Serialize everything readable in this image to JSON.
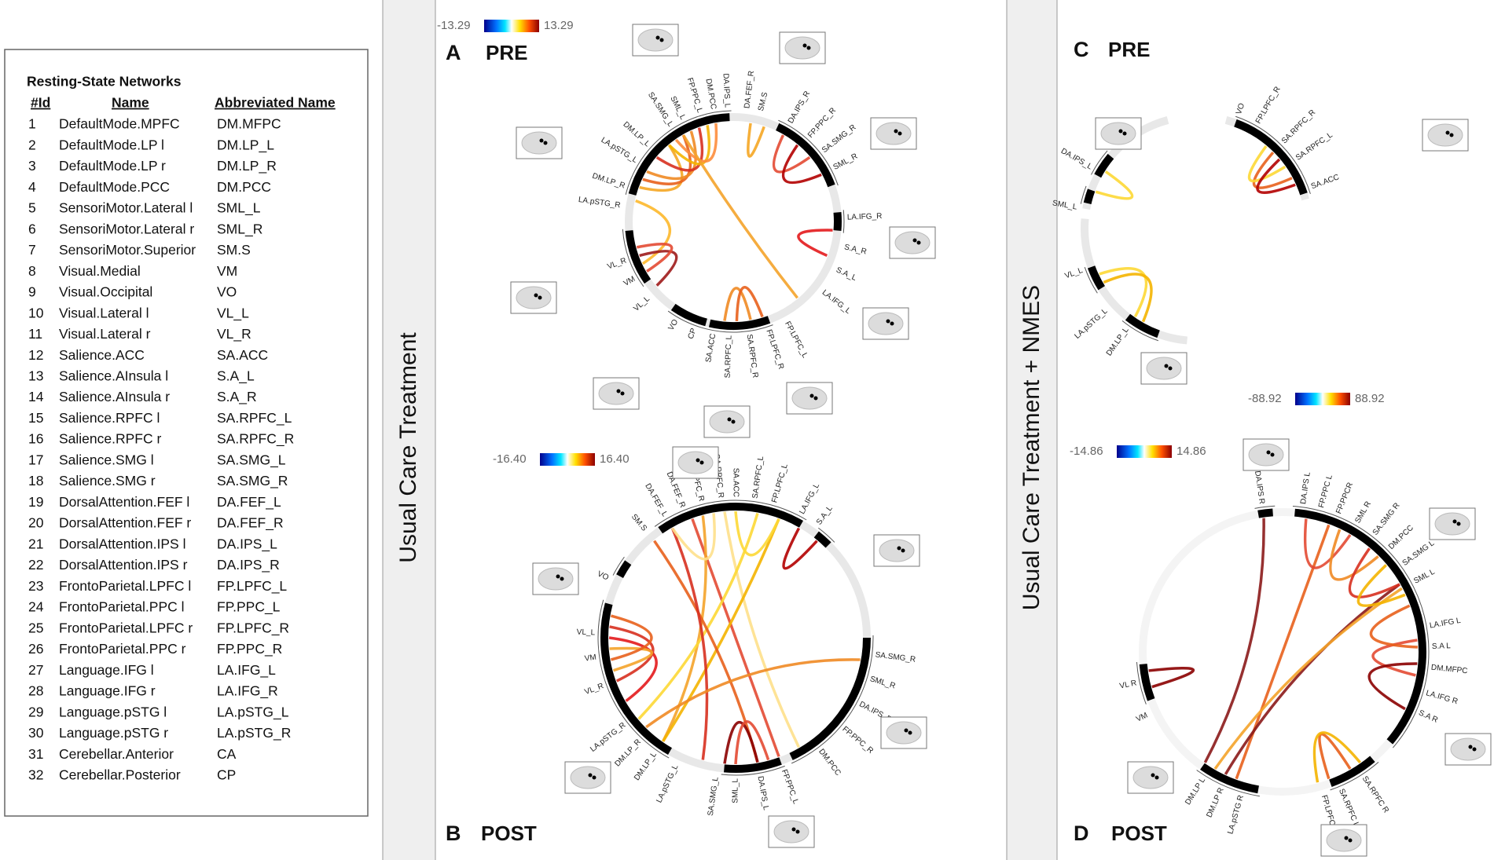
{
  "table": {
    "title": "Resting-State Networks",
    "headers": [
      "#Id",
      "Name",
      "Abbreviated Name"
    ],
    "rows": [
      [
        "1",
        "DefaultMode.MPFC",
        "DM.MFPC"
      ],
      [
        "2",
        "DefaultMode.LP l",
        "DM.LP_L"
      ],
      [
        "3",
        "DefaultMode.LP r",
        "DM.LP_R"
      ],
      [
        "4",
        "DefaultMode.PCC",
        "DM.PCC"
      ],
      [
        "5",
        "SensoriMotor.Lateral l",
        "SML_L"
      ],
      [
        "6",
        "SensoriMotor.Lateral r",
        "SML_R"
      ],
      [
        "7",
        "SensoriMotor.Superior",
        "SM.S"
      ],
      [
        "8",
        "Visual.Medial",
        "VM"
      ],
      [
        "9",
        "Visual.Occipital",
        "VO"
      ],
      [
        "10",
        "Visual.Lateral l",
        "VL_L"
      ],
      [
        "11",
        "Visual.Lateral r",
        "VL_R"
      ],
      [
        "12",
        "Salience.ACC",
        "SA.ACC"
      ],
      [
        "13",
        "Salience.AInsula l",
        "S.A_L"
      ],
      [
        "14",
        "Salience.AInsula r",
        "S.A_R"
      ],
      [
        "15",
        "Salience.RPFC l",
        "SA.RPFC_L"
      ],
      [
        "16",
        "Salience.RPFC r",
        "SA.RPFC_R"
      ],
      [
        "17",
        "Salience.SMG l",
        "SA.SMG_L"
      ],
      [
        "18",
        "Salience.SMG r",
        "SA.SMG_R"
      ],
      [
        "19",
        "DorsalAttention.FEF l",
        "DA.FEF_L"
      ],
      [
        "20",
        "DorsalAttention.FEF r",
        "DA.FEF_R"
      ],
      [
        "21",
        "DorsalAttention.IPS l",
        "DA.IPS_L"
      ],
      [
        "22",
        "DorsalAttention.IPS r",
        "DA.IPS_R"
      ],
      [
        "23",
        "FrontoParietal.LPFC l",
        "FP.LPFC_L"
      ],
      [
        "24",
        "FrontoParietal.PPC l",
        "FP.PPC_L"
      ],
      [
        "25",
        "FrontoParietal.LPFC r",
        "FP.LPFC_R"
      ],
      [
        "26",
        "FrontoParietal.PPC r",
        "FP.PPC_R"
      ],
      [
        "27",
        "Language.IFG l",
        "LA.IFG_L"
      ],
      [
        "28",
        "Language.IFG r",
        "LA.IFG_R"
      ],
      [
        "29",
        "Language.pSTG l",
        "LA.pSTG_L"
      ],
      [
        "30",
        "Language.pSTG r",
        "LA.pSTG_R"
      ],
      [
        "31",
        "Cerebellar.Anterior",
        "CA"
      ],
      [
        "32",
        "Cerebellar.Posterior",
        "CP"
      ]
    ]
  },
  "section_labels": [
    "Usual Care Treatment",
    "Usual Care Treatment + NMES"
  ],
  "panels": [
    {
      "letter": "A",
      "title": "PRE",
      "scale_min": "-13.29",
      "scale_max": "13.29",
      "nodes": [
        "DA.IPS_L",
        "DM.PCC",
        "FP.PPC_L",
        "SML_L",
        "SA.SMG_L",
        "DM.LP_L",
        "LA.pSTG_L",
        "DM.LP_R",
        "LA.pSTG_R",
        "VL_R",
        "VM",
        "VL_L",
        "VO",
        "CP",
        "SA.ACC",
        "SA.RPFC_L",
        "SA.RPFC_R",
        "FP.LPFC_R",
        "FP.LPFC_L",
        "LA.IFG_L",
        "S.A_L",
        "S.A_R",
        "LA.IFG_R",
        "SML_R",
        "SA.SMG_R",
        "FP.PPC_R",
        "DA.IPS_R",
        "SM.S",
        "DA.FEF_R"
      ]
    },
    {
      "letter": "B",
      "title": "POST",
      "scale_min": "-16.40",
      "scale_max": "16.40",
      "nodes": [
        "SM.S",
        "DA.FEF_L",
        "DA.FEF_R",
        "FP.LPFC_R",
        "SA.RPFC_R",
        "SA.ACC",
        "SA.RPFC_L",
        "FP.LPFC_L",
        "LA.IFG_L",
        "S.A_L",
        "SA.SMG_R",
        "SML_R",
        "DA.IPS_R",
        "FP.PPC_R",
        "DM.PCC",
        "FP.PPC_L",
        "DA.IPS_L",
        "SML_L",
        "SA.SMG_L",
        "LA.pSTG_L",
        "DM.LP_L",
        "DM.LP_R",
        "LA.pSTG_R",
        "VL_R",
        "VM",
        "VL_L",
        "VO"
      ]
    },
    {
      "letter": "C",
      "title": "PRE",
      "scale_min": "-88.92",
      "scale_max": "88.92",
      "nodes": [
        "DA.IPS_L",
        "SML_L",
        "VL_L",
        "LA.pSTG_L",
        "DM.LP_L",
        "VO",
        "FP.LPFC_R",
        "SA.RPFC_R",
        "SA.RPFC_L",
        "SA.ACC"
      ]
    },
    {
      "letter": "D",
      "title": "POST",
      "scale_min": "-14.86",
      "scale_max": "14.86",
      "nodes": [
        "DA.IPS R",
        "DA.IPS L",
        "FP.PPC L",
        "FP.PPCR",
        "SML R",
        "SA.SMG R",
        "DM.PCC",
        "SA.SMG L",
        "SML L",
        "LA.IFG L",
        "S.A L",
        "DM.MFPC",
        "LA.IFG R",
        "S.A R",
        "SA.RPFC R",
        "SA.RPFC L",
        "FP.LPFC L",
        "LA.pSTG R",
        "DM.LP R",
        "DM.LP L",
        "VM",
        "VL R"
      ]
    }
  ]
}
